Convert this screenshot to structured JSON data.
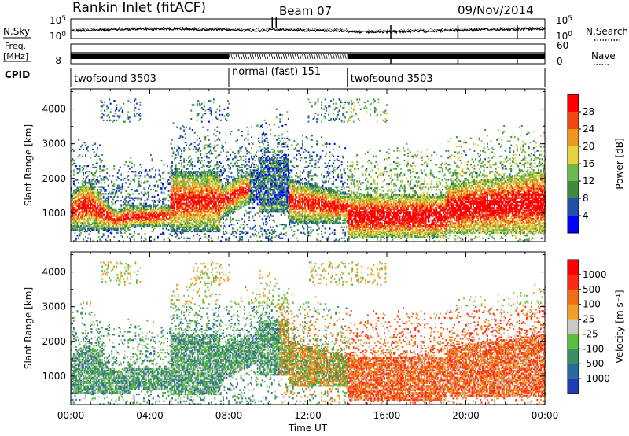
{
  "header": {
    "station": "Rankin Inlet (fitACF)",
    "beam": "Beam 07",
    "date": "09/Nov/2014"
  },
  "left_labels": {
    "nsky": "N.Sky",
    "freq_top": "Freq.",
    "freq_unit": "[MHz]",
    "cpid": "CPID"
  },
  "right_labels": {
    "nsearch": "N.Search",
    "nave": "Nave"
  },
  "chart_data": {
    "type": "heatmap",
    "xlabel": "Time UT",
    "x_ticks": [
      "00:00",
      "04:00",
      "08:00",
      "12:00",
      "16:00",
      "20:00",
      "00:00"
    ],
    "xlim_hours": [
      0,
      24
    ],
    "noise_panel": {
      "left_ticks": [
        "10^5",
        "10^0"
      ],
      "right_ticks": [
        "10^5",
        "10^0"
      ]
    },
    "freq_panel": {
      "left_tick": "8",
      "right_ticks": [
        "60",
        "0"
      ]
    },
    "cpid_segments": [
      {
        "label": "twofsound 3503",
        "start": 0,
        "end": 8
      },
      {
        "label": "normal (fast) 151",
        "start": 8,
        "end": 14
      },
      {
        "label": "twofsound 3503",
        "start": 14,
        "end": 24
      }
    ],
    "power_panel": {
      "ylabel": "Slant Range [km]",
      "ylim": [
        180,
        4580
      ],
      "y_ticks": [
        "1000",
        "2000",
        "3000",
        "4000"
      ],
      "colorbar_label": "Power [dB]",
      "colorbar_ticks": [
        "28",
        "24",
        "20",
        "16",
        "12",
        "8",
        "4"
      ],
      "colors": [
        "#0000ff",
        "#2050a8",
        "#3c8c3c",
        "#6cb84c",
        "#e6d23c",
        "#f0961e",
        "#f04614",
        "#ff0000"
      ]
    },
    "velocity_panel": {
      "ylabel": "Slant Range [km]",
      "ylim": [
        180,
        4580
      ],
      "y_ticks": [
        "1000",
        "2000",
        "3000",
        "4000"
      ],
      "colorbar_label": "Velocity [m s⁻¹]",
      "colorbar_ticks": [
        "1000",
        "500",
        "100",
        "25",
        "-25",
        "-100",
        "-500",
        "-1000"
      ],
      "colors": [
        "#1e3cb4",
        "#2a6aa0",
        "#3c8c64",
        "#5abe3c",
        "#c8c8c8",
        "#f0a028",
        "#f06e14",
        "#ff2a14",
        "#ff0000"
      ]
    }
  }
}
